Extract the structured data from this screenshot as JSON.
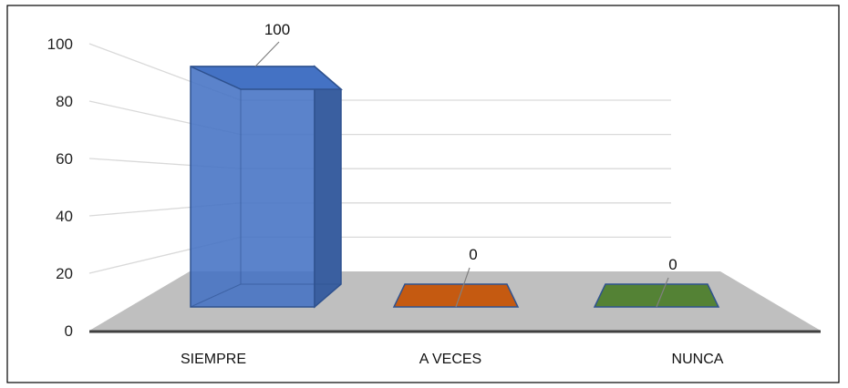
{
  "chart_data": {
    "type": "bar",
    "style": "3d-column",
    "categories": [
      "SIEMPRE",
      "A VECES",
      "NUNCA"
    ],
    "values": [
      100,
      0,
      0
    ],
    "data_labels": [
      "100",
      "0",
      "0"
    ],
    "ylim": [
      0,
      100
    ],
    "yticks": [
      0,
      20,
      40,
      60,
      80,
      100
    ],
    "ytick_labels": [
      "0",
      "20",
      "40",
      "60",
      "80",
      "100"
    ],
    "grid": true,
    "legend": "none",
    "colors": [
      "#4472C4",
      "#C55A11",
      "#548235"
    ],
    "edge_color": "#2F528F",
    "floor_color": "#BFBFBF",
    "grid_color": "#D9D9D9"
  }
}
